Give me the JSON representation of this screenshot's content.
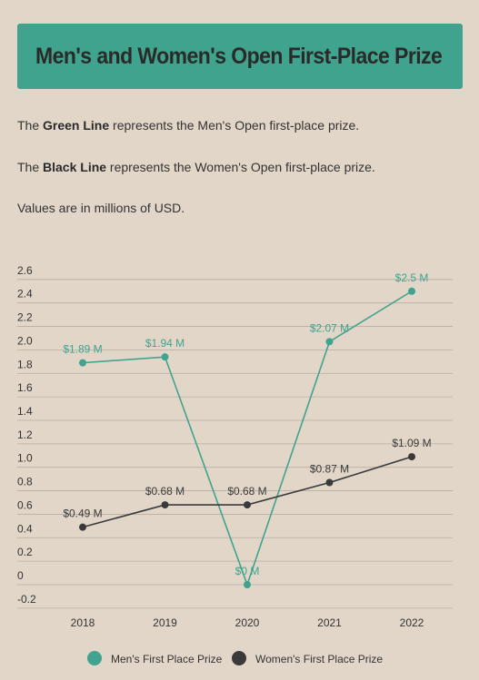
{
  "header": {
    "title": "Men's and Women's Open First-Place Prize"
  },
  "description": {
    "p1": {
      "bold": "Green Line",
      "rest": " represents the Men's Open first-place prize."
    },
    "p2": {
      "bold": "Black Line",
      "rest": " represents the Women's Open first-place prize."
    },
    "p3": {
      "text": "Values are in millions of USD."
    }
  },
  "colors": {
    "background": "#e2d6c9",
    "banner": "#3fa38e",
    "men": "#3fa38e",
    "women": "#3a3a3a",
    "grid": "#b9aea3"
  },
  "chart_data": {
    "type": "line",
    "categories": [
      "2018",
      "2019",
      "2020",
      "2021",
      "2022"
    ],
    "series": [
      {
        "name": "Men's First Place Prize",
        "values": [
          1.89,
          1.94,
          0,
          2.07,
          2.5
        ],
        "labels": [
          "$1.89 M",
          "$1.94 M",
          "$0 M",
          "$2.07 M",
          "$2.5 M"
        ],
        "color": "#3fa38e"
      },
      {
        "name": "Women's First Place Prize",
        "values": [
          0.49,
          0.68,
          0.68,
          0.87,
          1.09
        ],
        "labels": [
          "$0.49 M",
          "$0.68 M",
          "$0.68 M",
          "$0.87 M",
          "$1.09 M"
        ],
        "color": "#3a3a3a"
      }
    ],
    "yticks": [
      "-0.2",
      "0",
      "0.2",
      "0.4",
      "0.6",
      "0.8",
      "1.0",
      "1.2",
      "1.4",
      "1.6",
      "1.8",
      "2.0",
      "2.2",
      "2.4",
      "2.6"
    ],
    "ylim": [
      -0.2,
      2.6
    ],
    "grid": true,
    "legend_position": "bottom"
  }
}
